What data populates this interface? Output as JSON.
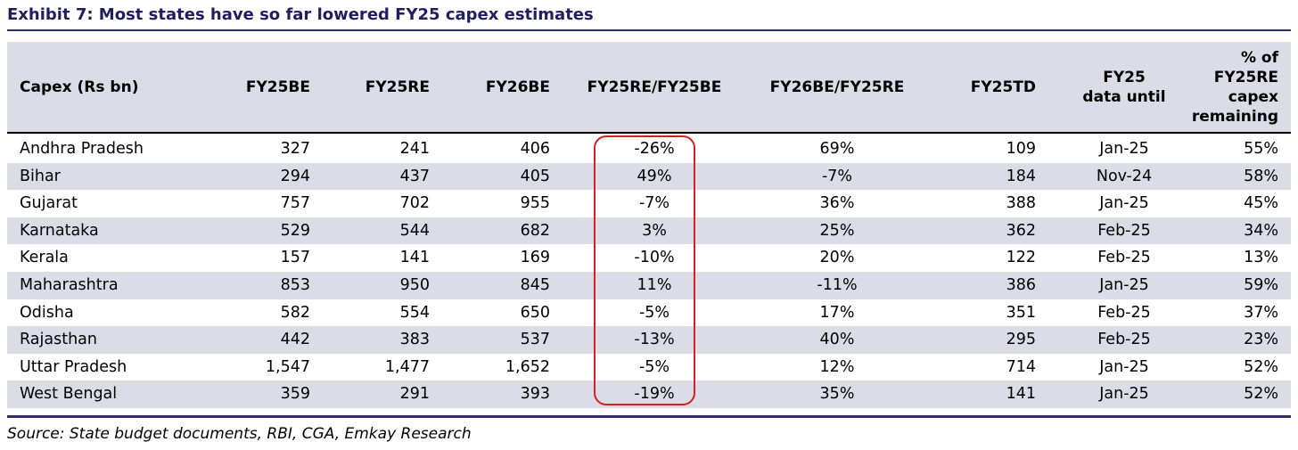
{
  "title": "Exhibit 7: Most states have so far lowered FY25 capex estimates",
  "source": "Source: State budget documents, RBI, CGA, Emkay Research",
  "colors": {
    "title": "#1f1f5f",
    "rule": "#2e2e6e",
    "shade": "#dcdce6",
    "highlight": "#d42020"
  },
  "chart_data": {
    "type": "table",
    "columns": [
      {
        "key": "state",
        "label_lines": [
          "Capex (Rs bn)"
        ]
      },
      {
        "key": "fy25be",
        "label_lines": [
          "FY25BE"
        ]
      },
      {
        "key": "fy25re",
        "label_lines": [
          "FY25RE"
        ]
      },
      {
        "key": "fy26be",
        "label_lines": [
          "FY26BE"
        ]
      },
      {
        "key": "re_be",
        "label_lines": [
          "FY25RE/FY25BE"
        ]
      },
      {
        "key": "be26_re25",
        "label_lines": [
          "FY26BE/FY25RE"
        ]
      },
      {
        "key": "fy25td",
        "label_lines": [
          "FY25TD"
        ]
      },
      {
        "key": "data_until",
        "label_lines": [
          "FY25",
          "data until"
        ]
      },
      {
        "key": "remaining",
        "label_lines": [
          "% of",
          "FY25RE",
          "capex",
          "remaining"
        ]
      }
    ],
    "rows": [
      {
        "state": "Andhra Pradesh",
        "fy25be": "327",
        "fy25re": "241",
        "fy26be": "406",
        "re_be": "-26%",
        "be26_re25": "69%",
        "fy25td": "109",
        "data_until": "Jan-25",
        "remaining": "55%"
      },
      {
        "state": "Bihar",
        "fy25be": "294",
        "fy25re": "437",
        "fy26be": "405",
        "re_be": "49%",
        "be26_re25": "-7%",
        "fy25td": "184",
        "data_until": "Nov-24",
        "remaining": "58%"
      },
      {
        "state": "Gujarat",
        "fy25be": "757",
        "fy25re": "702",
        "fy26be": "955",
        "re_be": "-7%",
        "be26_re25": "36%",
        "fy25td": "388",
        "data_until": "Jan-25",
        "remaining": "45%"
      },
      {
        "state": "Karnataka",
        "fy25be": "529",
        "fy25re": "544",
        "fy26be": "682",
        "re_be": "3%",
        "be26_re25": "25%",
        "fy25td": "362",
        "data_until": "Feb-25",
        "remaining": "34%"
      },
      {
        "state": "Kerala",
        "fy25be": "157",
        "fy25re": "141",
        "fy26be": "169",
        "re_be": "-10%",
        "be26_re25": "20%",
        "fy25td": "122",
        "data_until": "Feb-25",
        "remaining": "13%"
      },
      {
        "state": "Maharashtra",
        "fy25be": "853",
        "fy25re": "950",
        "fy26be": "845",
        "re_be": "11%",
        "be26_re25": "-11%",
        "fy25td": "386",
        "data_until": "Jan-25",
        "remaining": "59%"
      },
      {
        "state": "Odisha",
        "fy25be": "582",
        "fy25re": "554",
        "fy26be": "650",
        "re_be": "-5%",
        "be26_re25": "17%",
        "fy25td": "351",
        "data_until": "Feb-25",
        "remaining": "37%"
      },
      {
        "state": "Rajasthan",
        "fy25be": "442",
        "fy25re": "383",
        "fy26be": "537",
        "re_be": "-13%",
        "be26_re25": "40%",
        "fy25td": "295",
        "data_until": "Feb-25",
        "remaining": "23%"
      },
      {
        "state": "Uttar Pradesh",
        "fy25be": "1,547",
        "fy25re": "1,477",
        "fy26be": "1,652",
        "re_be": "-5%",
        "be26_re25": "12%",
        "fy25td": "714",
        "data_until": "Jan-25",
        "remaining": "52%"
      },
      {
        "state": "West Bengal",
        "fy25be": "359",
        "fy25re": "291",
        "fy26be": "393",
        "re_be": "-19%",
        "be26_re25": "35%",
        "fy25td": "141",
        "data_until": "Jan-25",
        "remaining": "52%"
      }
    ],
    "highlighted_column": "re_be"
  }
}
